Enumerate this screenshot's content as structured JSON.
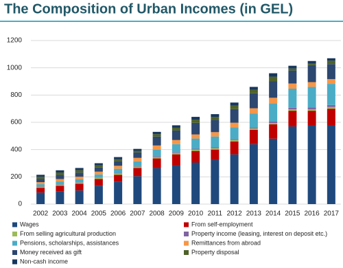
{
  "chart_data": {
    "type": "stacked-bar",
    "title": "The Composition of Urban Incomes (in GEL)",
    "categories": [
      "2002",
      "2003",
      "2004",
      "2005",
      "2006",
      "2007",
      "2008",
      "2009",
      "2010",
      "2011",
      "2012",
      "2013",
      "2014",
      "2015",
      "2016",
      "2017"
    ],
    "series": [
      {
        "name": "Wages",
        "color": "#1f497d",
        "values": [
          85,
          95,
          100,
          135,
          165,
          205,
          265,
          285,
          305,
          325,
          365,
          440,
          480,
          570,
          575,
          575
        ]
      },
      {
        "name": "From self-employment",
        "color": "#c00000",
        "values": [
          35,
          40,
          50,
          50,
          50,
          60,
          70,
          80,
          85,
          75,
          95,
          105,
          105,
          115,
          110,
          125
        ]
      },
      {
        "name": "From selling agricultural production",
        "color": "#9bbb59",
        "values": [
          8,
          8,
          8,
          8,
          10,
          10,
          10,
          10,
          10,
          10,
          10,
          10,
          10,
          10,
          10,
          12
        ]
      },
      {
        "name": "Property income (leasing, interest on deposit etc.)",
        "color": "#8064a2",
        "values": [
          3,
          3,
          3,
          3,
          4,
          4,
          5,
          5,
          6,
          6,
          7,
          8,
          10,
          12,
          15,
          15
        ]
      },
      {
        "name": "Pensions, scholarships, assistances",
        "color": "#4bacc6",
        "values": [
          15,
          20,
          22,
          22,
          30,
          35,
          50,
          60,
          75,
          80,
          85,
          100,
          135,
          140,
          150,
          155
        ]
      },
      {
        "name": "Remittances from abroad",
        "color": "#f79646",
        "values": [
          15,
          18,
          18,
          20,
          22,
          25,
          30,
          30,
          30,
          32,
          35,
          40,
          40,
          38,
          35,
          35
        ]
      },
      {
        "name": "Money received as gift",
        "color": "#2c4770",
        "values": [
          25,
          30,
          30,
          30,
          35,
          40,
          65,
          70,
          85,
          90,
          100,
          110,
          120,
          95,
          125,
          110
        ]
      },
      {
        "name": "Property disposal",
        "color": "#4f6228",
        "values": [
          15,
          18,
          18,
          16,
          14,
          12,
          18,
          20,
          24,
          22,
          26,
          25,
          35,
          15,
          10,
          25
        ]
      },
      {
        "name": "Non-cash income",
        "color": "#17375e",
        "values": [
          14,
          16,
          16,
          16,
          15,
          14,
          17,
          18,
          20,
          20,
          22,
          22,
          25,
          20,
          20,
          18
        ]
      }
    ],
    "ylim": [
      0,
      1200
    ],
    "yticks": [
      0,
      200,
      400,
      600,
      800,
      1000,
      1200
    ],
    "grid": true
  }
}
